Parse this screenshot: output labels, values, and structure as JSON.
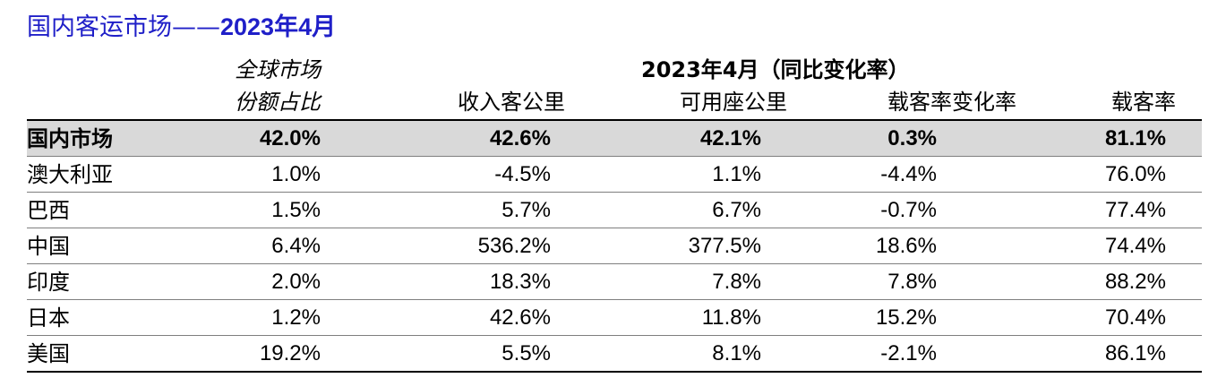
{
  "title": {
    "prefix": "国内客运市场——",
    "period": "2023年4月"
  },
  "header": {
    "share_line1": "全球市场",
    "share_line2": "份额占比",
    "period_label": "2023年4月（同比变化率）",
    "columns": [
      "收入客公里",
      "可用座公里",
      "载客率变化率",
      "载客率"
    ]
  },
  "rows": [
    {
      "name": "国内市场",
      "values": [
        "42.0%",
        "42.6%",
        "42.1%",
        "0.3%",
        "81.1%"
      ]
    },
    {
      "name": "澳大利亚",
      "values": [
        "1.0%",
        "-4.5%",
        "1.1%",
        "-4.4%",
        "76.0%"
      ]
    },
    {
      "name": "巴西",
      "values": [
        "1.5%",
        "5.7%",
        "6.7%",
        "-0.7%",
        "77.4%"
      ]
    },
    {
      "name": "中国",
      "values": [
        "6.4%",
        "536.2%",
        "377.5%",
        "18.6%",
        "74.4%"
      ]
    },
    {
      "name": "印度",
      "values": [
        "2.0%",
        "18.3%",
        "7.8%",
        "7.8%",
        "88.2%"
      ]
    },
    {
      "name": "日本",
      "values": [
        "1.2%",
        "42.6%",
        "11.8%",
        "15.2%",
        "70.4%"
      ]
    },
    {
      "name": "美国",
      "values": [
        "19.2%",
        "5.5%",
        "8.1%",
        "-2.1%",
        "86.1%"
      ]
    }
  ]
}
